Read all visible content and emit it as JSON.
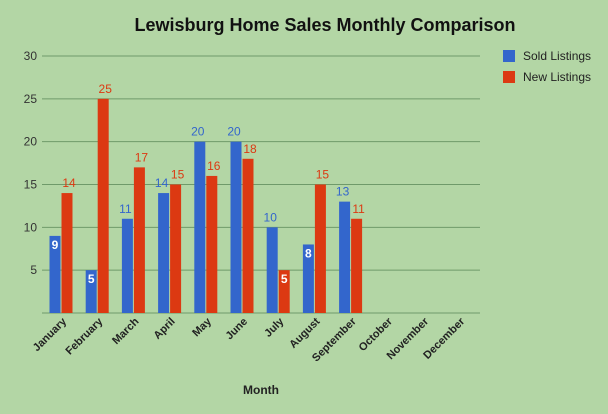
{
  "chart_data": {
    "type": "bar",
    "title": "Lewisburg Home Sales Monthly Comparison",
    "xlabel": "Month",
    "ylabel": "",
    "ylim": [
      0,
      30
    ],
    "yticks": [
      5,
      10,
      15,
      20,
      25,
      30
    ],
    "grid": true,
    "legend_position": "right",
    "categories": [
      "January",
      "February",
      "March",
      "April",
      "May",
      "June",
      "July",
      "August",
      "September",
      "October",
      "November",
      "December"
    ],
    "series": [
      {
        "name": "Sold Listings",
        "color": "#3366cc",
        "label_color": "#3366cc",
        "values": [
          9,
          5,
          11,
          14,
          20,
          20,
          10,
          8,
          13,
          null,
          null,
          null
        ]
      },
      {
        "name": "New Listings",
        "color": "#dc3912",
        "label_color": "#dc3912",
        "values": [
          14,
          25,
          17,
          15,
          16,
          18,
          5,
          15,
          11,
          null,
          null,
          null
        ]
      }
    ]
  }
}
